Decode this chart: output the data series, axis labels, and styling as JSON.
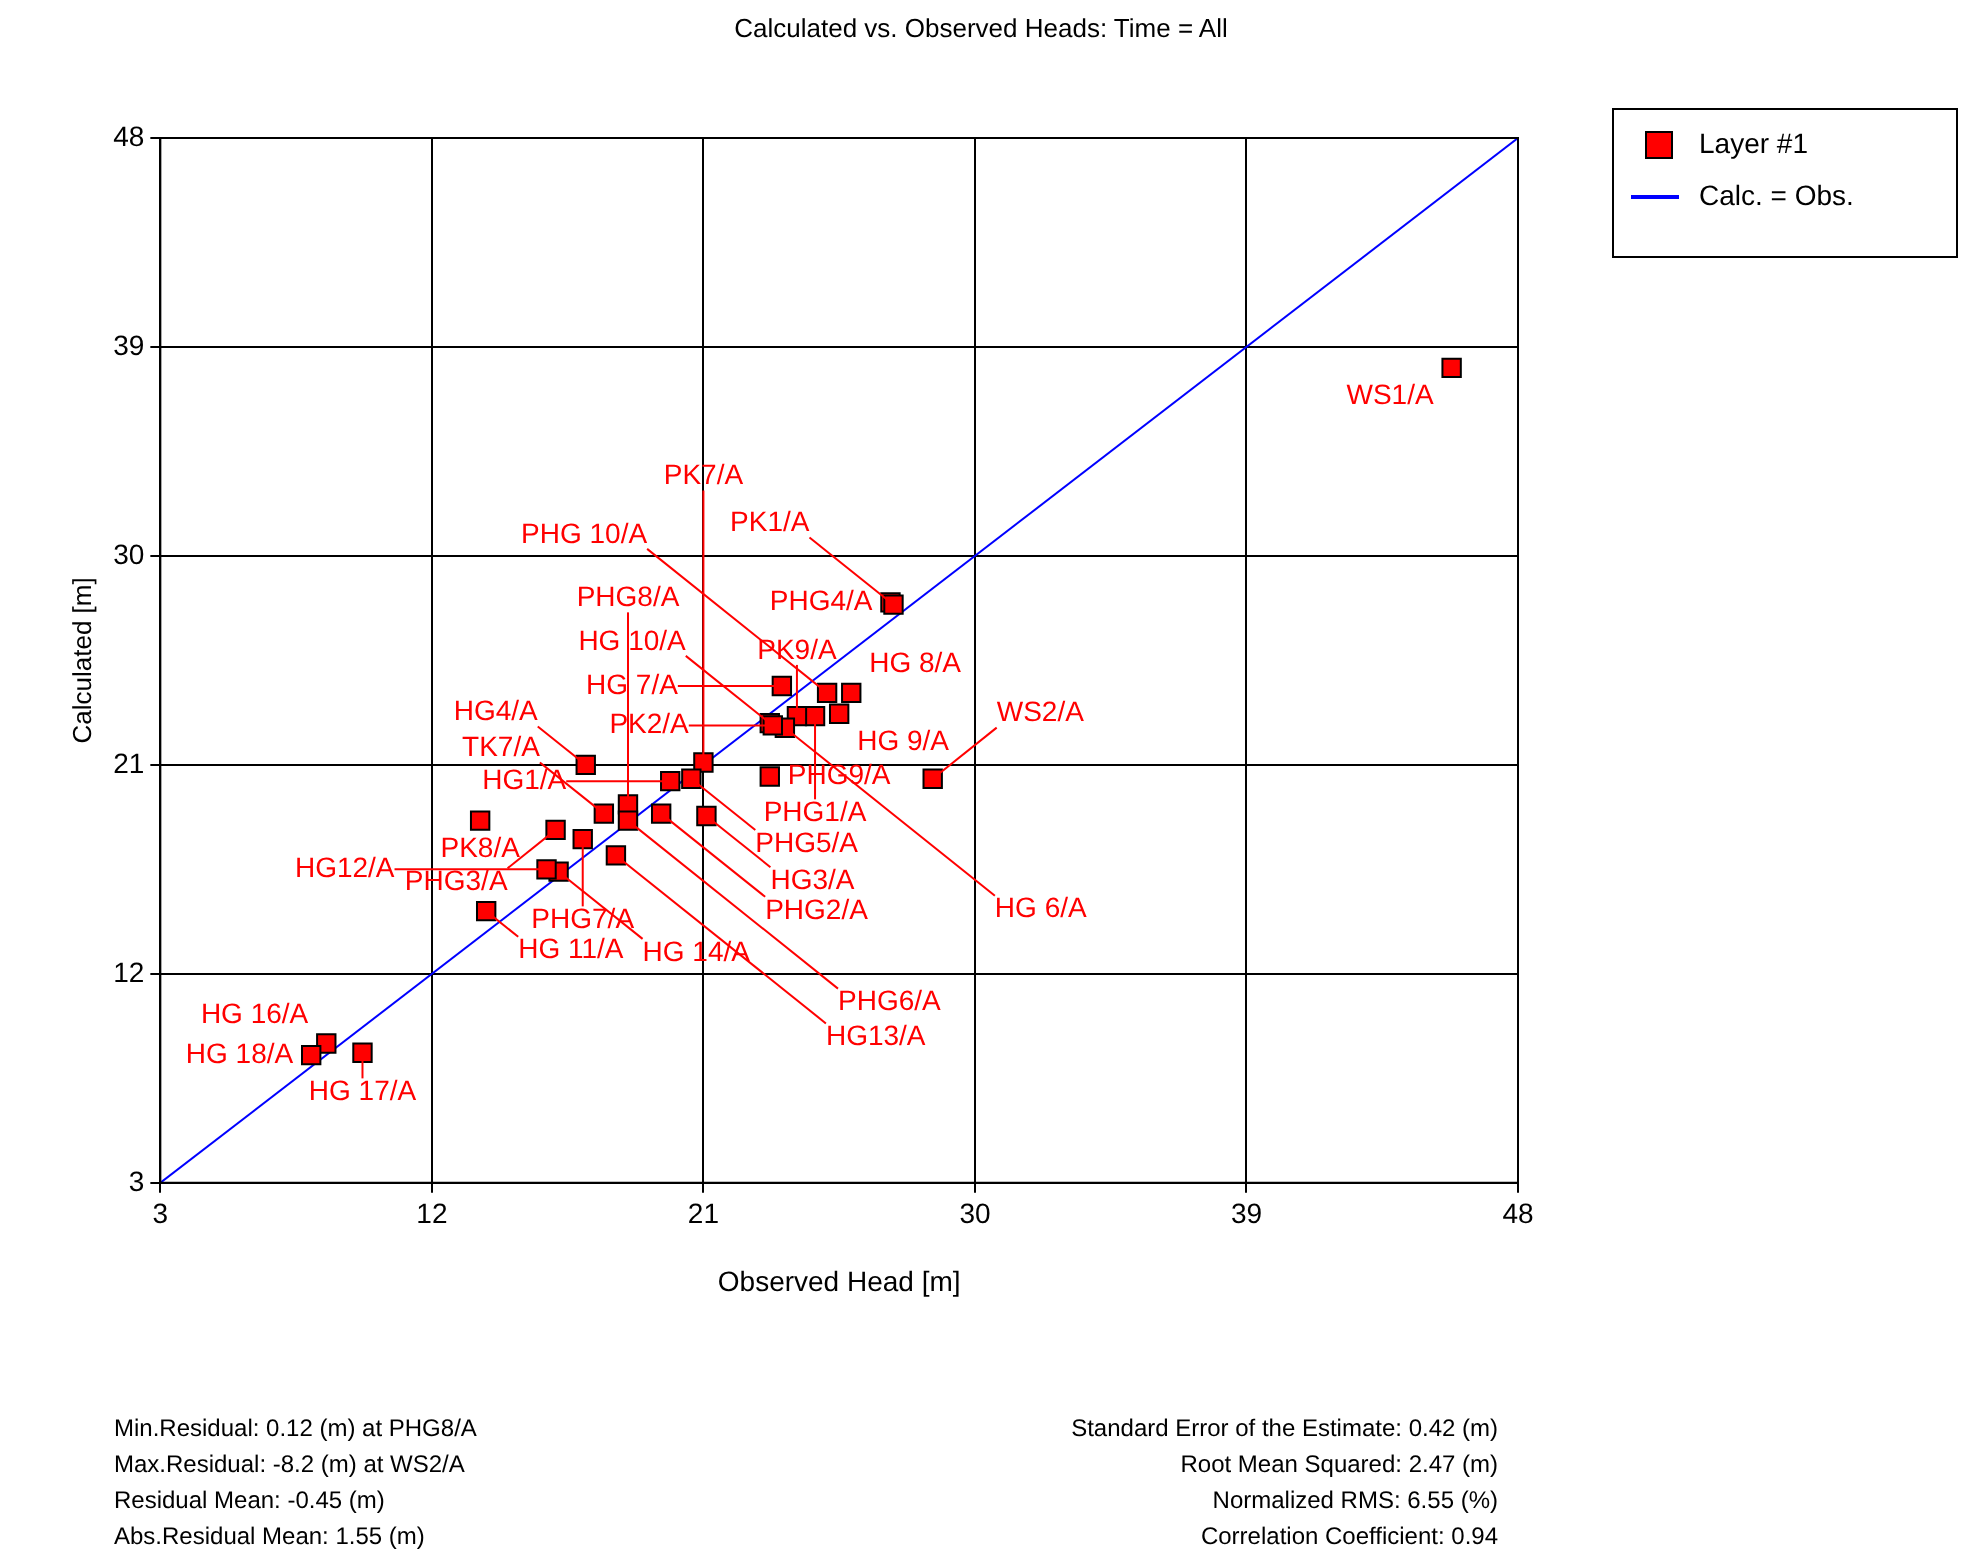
{
  "chart_data": {
    "type": "scatter",
    "title": "Calculated vs. Observed Heads: Time = All",
    "xlabel": "Observed Head [m]",
    "ylabel": "Calculated [m]",
    "xlim": [
      3,
      48
    ],
    "ylim": [
      3,
      48
    ],
    "xticks": [
      3,
      12,
      21,
      30,
      39,
      48
    ],
    "yticks": [
      3,
      12,
      21,
      30,
      39,
      48
    ],
    "grid": true,
    "legend": "top right",
    "marker": "square",
    "series": [
      {
        "name": "Layer #1",
        "color": "#ff0000",
        "x": [
          27.2,
          27.3,
          25.1,
          25.9,
          25.5,
          24.7,
          24.1,
          23.6,
          23.2,
          23.7,
          23.3,
          21.0,
          20.6,
          19.9,
          23.2,
          28.6,
          21.1,
          19.6,
          18.5,
          18.5,
          13.6,
          17.7,
          17.1,
          16.1,
          17.0,
          18.1,
          16.2,
          15.8,
          13.8,
          8.5,
          9.7,
          8.0,
          45.8
        ],
        "values": [
          28.0,
          27.9,
          24.1,
          24.1,
          23.2,
          23.1,
          23.1,
          24.4,
          22.8,
          22.6,
          22.7,
          21.1,
          20.4,
          20.3,
          20.5,
          20.4,
          18.8,
          18.9,
          19.3,
          18.6,
          18.6,
          18.9,
          21.0,
          18.2,
          17.8,
          17.1,
          16.4,
          16.5,
          14.7,
          9.0,
          8.6,
          8.5,
          38.1
        ],
        "value_labels": [
          "PHG4/A",
          "PK1/A",
          "PHG 10/A",
          "HG 8/A",
          "HG 9/A",
          "PHG1/A",
          "PK9/A",
          "HG 7/A",
          "HG 10/A",
          "HG 6/A",
          "PK2/A",
          "PK7/A",
          "PHG5/A",
          "HG1/A",
          "PHG9/A",
          "WS2/A",
          "HG3/A",
          "PHG2/A",
          "PHG8/A",
          "PHG6/A",
          "PK8/A",
          "TK7/A",
          "HG4/A",
          "PHG3/A",
          "PHG7/A",
          "HG13/A",
          "HG 14/A",
          "HG12/A",
          "HG 11/A",
          "HG 16/A",
          "HG 17/A",
          "HG 18/A",
          "WS1/A"
        ]
      },
      {
        "name": "Calc. = Obs.",
        "type": "line",
        "color": "#0000ff",
        "marker": "none",
        "x": [
          3,
          48
        ],
        "values": [
          3,
          48
        ]
      }
    ],
    "annotations": [
      "Min.Residual: 0.12 (m) at PHG8/A",
      "Max.Residual: -8.2 (m) at WS2/A",
      "Residual Mean: -0.45 (m)",
      "Abs.Residual Mean: 1.55 (m)",
      "Standard Error of the Estimate: 0.42 (m)",
      "Root Mean Squared: 2.47 (m)",
      "Normalized RMS: 6.55 (%)",
      "Correlation Coefficient: 0.94"
    ]
  }
}
